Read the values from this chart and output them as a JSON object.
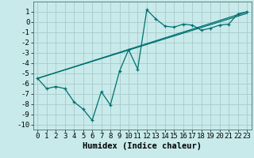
{
  "title": "",
  "xlabel": "Humidex (Indice chaleur)",
  "background_color": "#c8eaea",
  "grid_color": "#a8caca",
  "line_color": "#007070",
  "xlim": [
    -0.5,
    23.5
  ],
  "ylim": [
    -10.5,
    2.0
  ],
  "xticks": [
    0,
    1,
    2,
    3,
    4,
    5,
    6,
    7,
    8,
    9,
    10,
    11,
    12,
    13,
    14,
    15,
    16,
    17,
    18,
    19,
    20,
    21,
    22,
    23
  ],
  "yticks": [
    1,
    0,
    -1,
    -2,
    -3,
    -4,
    -5,
    -6,
    -7,
    -8,
    -9,
    -10
  ],
  "main_x": [
    0,
    1,
    2,
    3,
    4,
    5,
    6,
    7,
    8,
    9,
    10,
    11,
    12,
    13,
    14,
    15,
    16,
    17,
    18,
    19,
    20,
    21,
    22,
    23
  ],
  "main_y": [
    -5.5,
    -6.5,
    -6.3,
    -6.5,
    -7.8,
    -8.5,
    -9.6,
    -6.8,
    -8.1,
    -4.8,
    -2.7,
    -4.6,
    1.2,
    0.3,
    -0.4,
    -0.5,
    -0.2,
    -0.3,
    -0.8,
    -0.6,
    -0.3,
    -0.2,
    0.8,
    1.0
  ],
  "line1_x": [
    0,
    23
  ],
  "line1_y": [
    -5.5,
    1.0
  ],
  "line2_x": [
    0,
    23
  ],
  "line2_y": [
    -5.5,
    0.85
  ],
  "xlabel_fontsize": 7.5,
  "tick_fontsize": 6.5
}
